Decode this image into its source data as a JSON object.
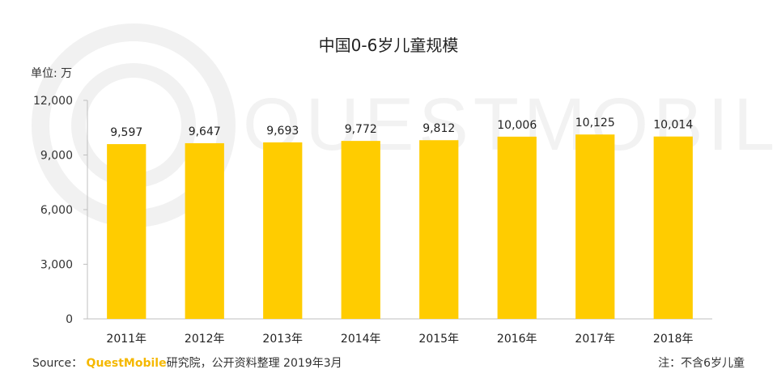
{
  "chart_data": {
    "type": "bar",
    "title": "中国0-6岁儿童规模",
    "unit_label": "单位: 万",
    "categories": [
      "2011年",
      "2012年",
      "2013年",
      "2014年",
      "2015年",
      "2016年",
      "2017年",
      "2018年"
    ],
    "values": [
      9597,
      9647,
      9693,
      9772,
      9812,
      10006,
      10125,
      10014
    ],
    "data_labels": [
      "9,597",
      "9,647",
      "9,693",
      "9,772",
      "9,812",
      "10,006",
      "10,125",
      "10,014"
    ],
    "ylim": [
      0,
      12000
    ],
    "yticks": [
      0,
      3000,
      6000,
      9000,
      12000
    ],
    "ytick_labels": [
      "0",
      "3,000",
      "6,000",
      "9,000",
      "12,000"
    ],
    "bar_color": "#ffcc00",
    "grid": false,
    "legend": "none"
  },
  "footer": {
    "source_prefix": "Source：",
    "source_brand": "QuestMobile",
    "source_suffix": "研究院，公开资料整理 2019年3月",
    "note": "注：不含6岁儿童"
  },
  "watermark": {
    "text": "QUESTMOBILE"
  }
}
